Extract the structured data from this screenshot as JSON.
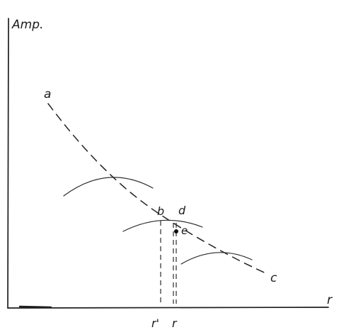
{
  "diagram": {
    "y_axis_label": "Amp.",
    "x_axis_label": "r",
    "curve_start_label": "a",
    "curve_end_label": "c",
    "point_b_label": "b",
    "point_d_label": "d",
    "point_e_label": "e",
    "tick_r_prime_label": "r'",
    "tick_r_label": "r"
  }
}
